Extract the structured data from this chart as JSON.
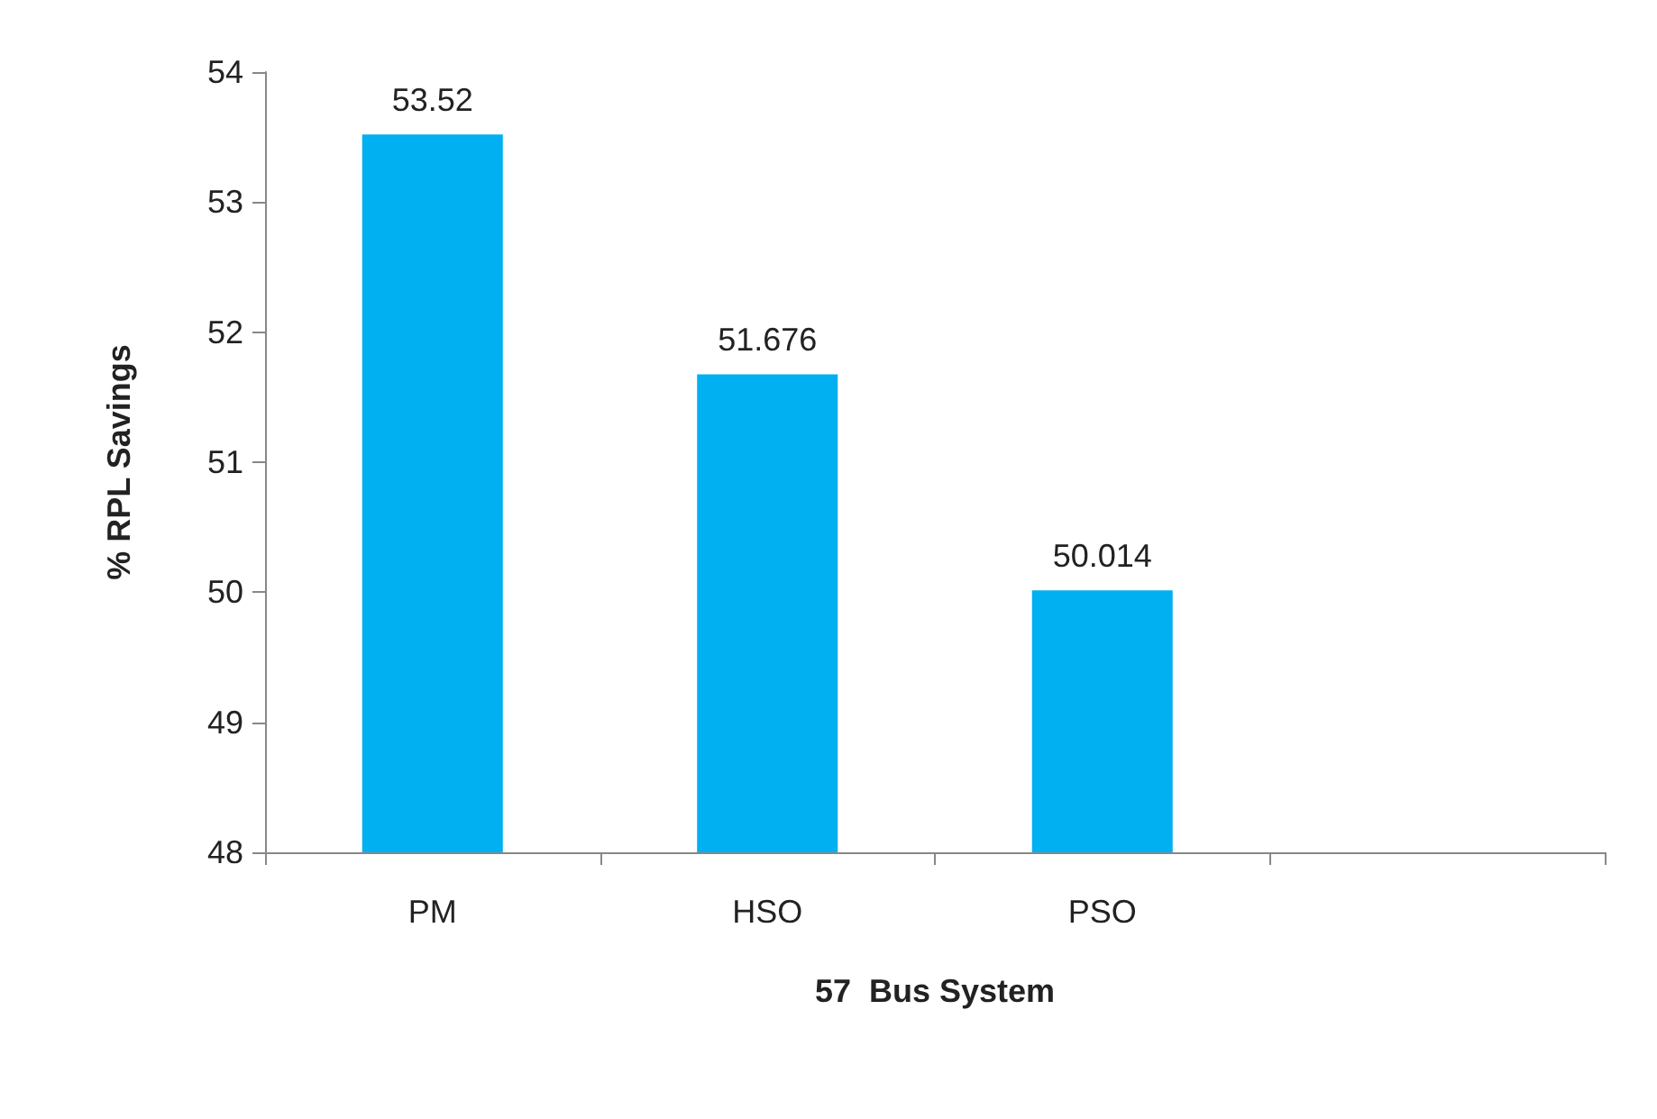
{
  "chart_data": {
    "type": "bar",
    "xlabel": "57  Bus System",
    "ylabel": "% RPL Savings",
    "categories": [
      "PM",
      "HSO",
      "PSO",
      null
    ],
    "values": [
      53.52,
      51.676,
      50.014,
      null
    ],
    "color": "#00b0f0",
    "ylim": [
      48,
      54
    ],
    "yticks": [
      48,
      49,
      50,
      51,
      52,
      53,
      54
    ],
    "data_labels": true
  }
}
